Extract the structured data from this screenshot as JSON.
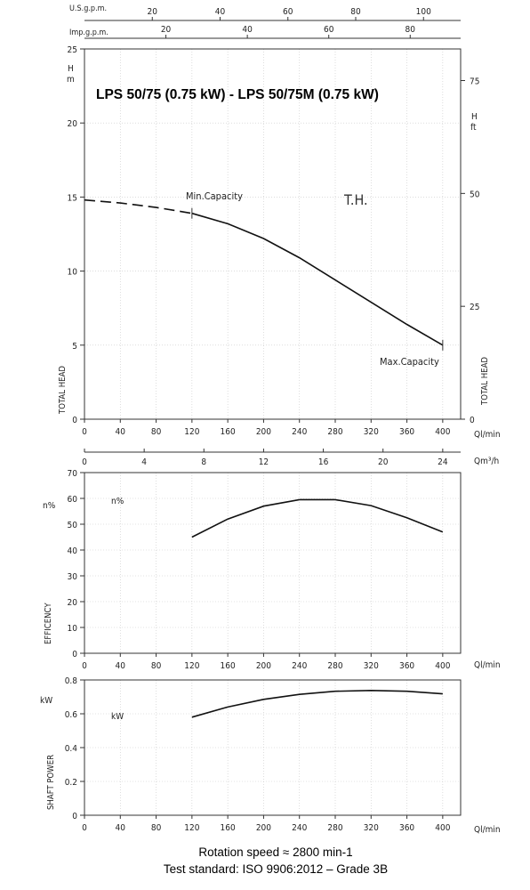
{
  "chart_data": [
    {
      "type": "line",
      "title": "LPS 50/75 (0.75 kW) - LPS 50/75M (0.75 kW)",
      "ylabel": "TOTAL HEAD",
      "y_unit": "H m",
      "y2_label": "TOTAL HEAD",
      "y2_unit": "H ft",
      "x_unit": "Ql/min",
      "xlim": [
        0,
        420
      ],
      "ylim": [
        0,
        25
      ],
      "y2lim": [
        0,
        82
      ],
      "x_ticks": [
        0,
        40,
        80,
        120,
        160,
        200,
        240,
        280,
        320,
        360,
        400
      ],
      "y_ticks": [
        0,
        5,
        10,
        15,
        20,
        25
      ],
      "y2_ticks": [
        0,
        25,
        50,
        75
      ],
      "top_axes": [
        {
          "label": "U.S.g.p.m.",
          "max": 110.95,
          "ticks": [
            20,
            40,
            60,
            80,
            100
          ]
        },
        {
          "label": "Imp.g.p.m.",
          "max": 92.39,
          "ticks": [
            20,
            40,
            60,
            80
          ]
        }
      ],
      "bottom_axis2": {
        "label": "Qm³/h",
        "max": 25.2,
        "ticks": [
          0,
          4,
          8,
          12,
          16,
          20,
          24
        ]
      },
      "series": [
        {
          "name": "T.H.",
          "x": [
            0,
            40,
            80,
            120,
            160,
            200,
            240,
            280,
            320,
            360,
            400
          ],
          "values": [
            14.8,
            14.6,
            14.3,
            13.9,
            13.2,
            12.2,
            10.9,
            9.4,
            7.9,
            6.4,
            5.0
          ],
          "dashed_until": 120
        }
      ],
      "annotations": {
        "min_label": "Min.Capacity",
        "max_label": "Max.Capacity",
        "min_x": 120,
        "max_x": 400
      }
    },
    {
      "type": "line",
      "ylabel": "EFFICENCY",
      "y_unit": "n%",
      "series_label": "n%",
      "x_unit": "Ql/min",
      "xlim": [
        0,
        420
      ],
      "ylim": [
        0,
        70
      ],
      "x_ticks": [
        0,
        40,
        80,
        120,
        160,
        200,
        240,
        280,
        320,
        360,
        400
      ],
      "y_ticks": [
        0,
        10,
        20,
        30,
        40,
        50,
        60,
        70
      ],
      "series": [
        {
          "name": "n%",
          "x": [
            120,
            160,
            200,
            240,
            280,
            320,
            360,
            400
          ],
          "values": [
            45,
            52,
            57,
            59.5,
            59.5,
            57.2,
            52.5,
            47
          ]
        }
      ]
    },
    {
      "type": "line",
      "ylabel": "SHAFT POWER",
      "y_unit": "kW",
      "series_label": "kW",
      "x_unit": "Ql/min",
      "xlim": [
        0,
        420
      ],
      "ylim": [
        0,
        0.8
      ],
      "x_ticks": [
        0,
        40,
        80,
        120,
        160,
        200,
        240,
        280,
        320,
        360,
        400
      ],
      "y_ticks": [
        0,
        0.2,
        0.4,
        0.6,
        0.8
      ],
      "series": [
        {
          "name": "kW",
          "x": [
            120,
            160,
            200,
            240,
            280,
            320,
            360,
            400
          ],
          "values": [
            0.58,
            0.64,
            0.685,
            0.715,
            0.733,
            0.738,
            0.733,
            0.718
          ]
        }
      ]
    }
  ],
  "footer": {
    "line1": "Rotation speed ≈ 2800 min-1",
    "line2": "Test standard: ISO 9906:2012 – Grade 3B"
  }
}
